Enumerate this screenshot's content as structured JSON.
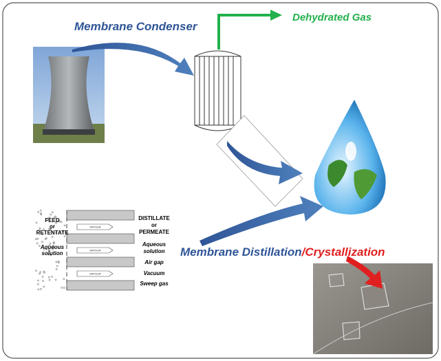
{
  "labels": {
    "condenser": "Membrane Condenser",
    "dehydrated": "Dehydrated Gas",
    "distillation": "Membrane Distillation",
    "crystallization": "/Crystallization"
  },
  "md_diagram": {
    "feed": [
      "FEED",
      "or",
      "RETENTATE"
    ],
    "aqueous_left": [
      "Aqueous",
      "solution"
    ],
    "vapour": [
      "VAPOUR",
      "VAPOUR",
      "VAPOUR"
    ],
    "right": [
      "DISTILLATE",
      "or",
      "PERMEATE",
      "Aqueous",
      "solution",
      "Air gap",
      "Vacuum",
      "Sweep gas"
    ]
  }
}
